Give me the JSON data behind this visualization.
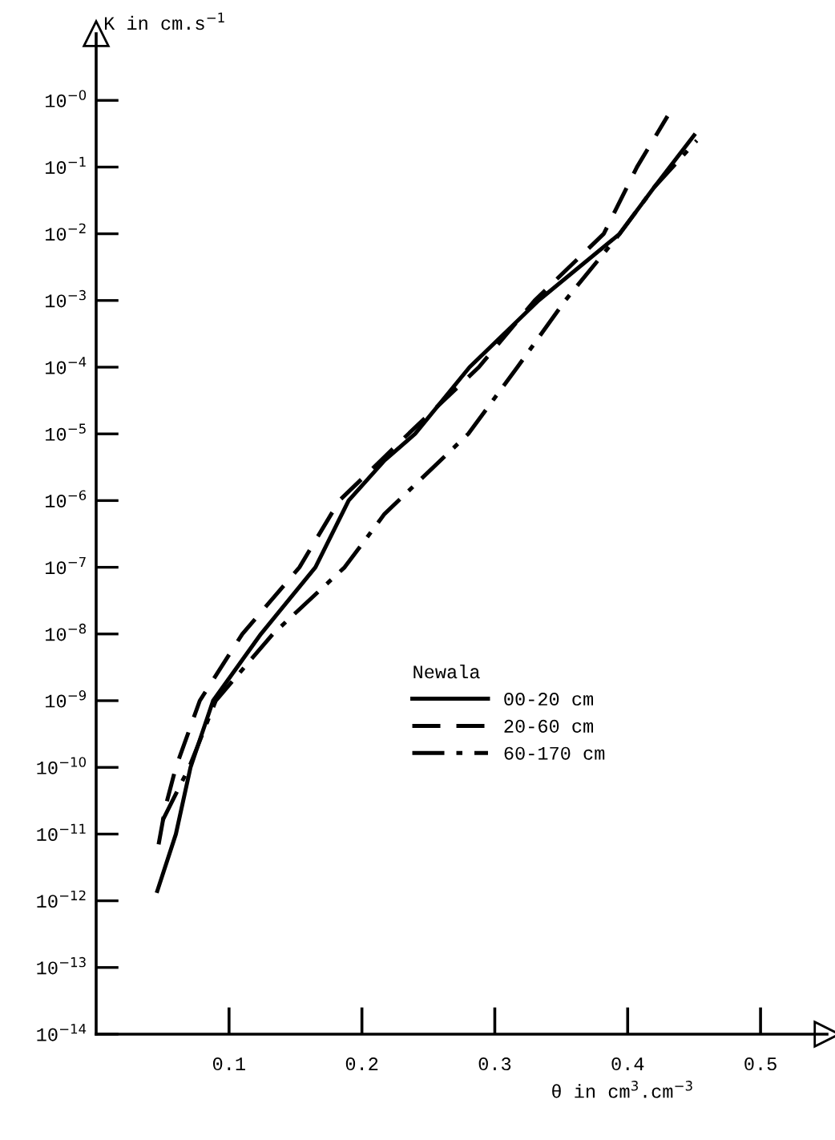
{
  "chart_data": {
    "type": "line",
    "xlabel": "θ in cm$^{3}$.cm$^{−3}$",
    "ylabel": "K in cm.s$^{−1}$",
    "legend_title": "Newala",
    "log": "y",
    "xlim": [
      0,
      0.55
    ],
    "ylim": [
      1e-14,
      10
    ],
    "xticks": [
      0.1,
      0.2,
      0.3,
      0.4,
      0.5
    ],
    "yticks": [
      {
        "value": 1,
        "label": "10$^{−0}$"
      },
      {
        "value": 0.1,
        "label": "10$^{−1}$"
      },
      {
        "value": 0.01,
        "label": "10$^{−2}$"
      },
      {
        "value": 0.001,
        "label": "10$^{−3}$"
      },
      {
        "value": 0.0001,
        "label": "10$^{−4}$"
      },
      {
        "value": 1e-05,
        "label": "10$^{−5}$"
      },
      {
        "value": 1e-06,
        "label": "10$^{−6}$"
      },
      {
        "value": 1e-07,
        "label": "10$^{−7}$"
      },
      {
        "value": 1e-08,
        "label": "10$^{−8}$"
      },
      {
        "value": 1e-09,
        "label": "10$^{−9}$"
      },
      {
        "value": 1e-10,
        "label": "10$^{−10}$"
      },
      {
        "value": 1e-11,
        "label": "10$^{−11}$"
      },
      {
        "value": 1e-12,
        "label": "10$^{−12}$"
      },
      {
        "value": 1e-13,
        "label": "10$^{−13}$"
      },
      {
        "value": 1e-14,
        "label": "10$^{−14}$"
      }
    ],
    "grid": false,
    "legend": "right",
    "marker": "none",
    "series": [
      {
        "name": "00-20 cm",
        "color": "#000000",
        "line_style": "solid",
        "x": [
          0.046,
          0.06,
          0.071,
          0.088,
          0.124,
          0.165,
          0.19,
          0.217,
          0.24,
          0.281,
          0.333,
          0.394,
          0.42,
          0.45
        ],
        "values": [
          1.4e-12,
          1e-11,
          1e-10,
          1e-09,
          1e-08,
          1e-07,
          1e-06,
          4e-06,
          1e-05,
          0.0001,
          0.001,
          0.01,
          0.05,
          0.3
        ]
      },
      {
        "name": "20-60 cm",
        "color": "#000000",
        "line_style": "dashed",
        "x": [
          0.047,
          0.052,
          0.06,
          0.078,
          0.11,
          0.153,
          0.183,
          0.235,
          0.288,
          0.33,
          0.382,
          0.407,
          0.43
        ],
        "values": [
          7e-12,
          2.5e-11,
          1e-10,
          1e-09,
          1e-08,
          1e-07,
          1e-06,
          1e-05,
          0.0001,
          0.001,
          0.01,
          0.1,
          0.58
        ]
      },
      {
        "name": "60-170 cm",
        "color": "#000000",
        "line_style": "dashdot",
        "x": [
          0.05,
          0.07,
          0.09,
          0.133,
          0.187,
          0.217,
          0.28,
          0.317,
          0.353,
          0.394,
          0.42,
          0.452
        ],
        "values": [
          1.6e-11,
          1e-10,
          1e-09,
          1e-08,
          1e-07,
          6.3e-07,
          1e-05,
          0.0001,
          0.001,
          0.01,
          0.05,
          0.25
        ]
      }
    ]
  }
}
